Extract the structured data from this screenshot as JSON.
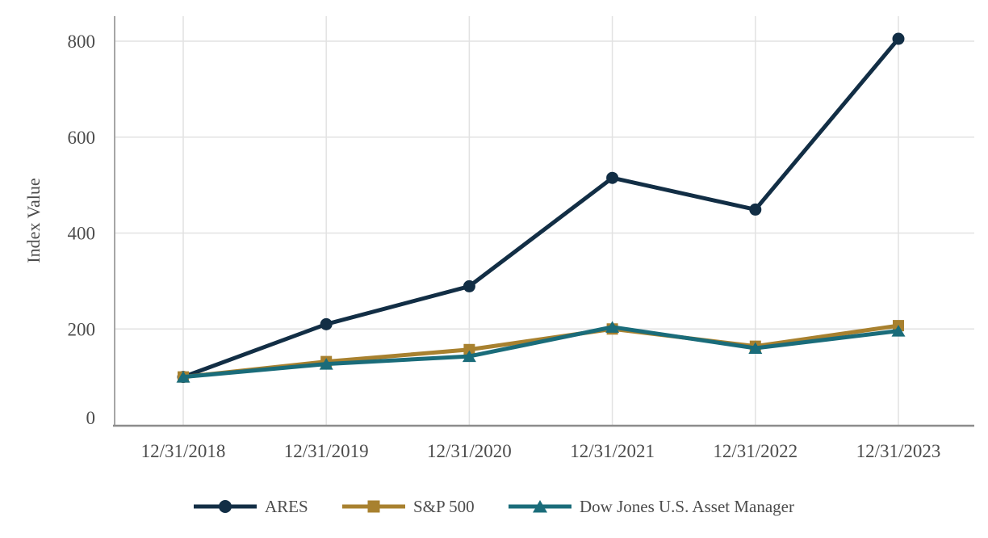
{
  "chart_data": {
    "type": "line",
    "title": "",
    "xlabel": "",
    "ylabel": "Index Value",
    "categories": [
      "12/31/2018",
      "12/31/2019",
      "12/31/2020",
      "12/31/2021",
      "12/31/2022",
      "12/31/2023"
    ],
    "series": [
      {
        "id": "ares",
        "name": "ARES",
        "color": "#122e45",
        "marker": "circle",
        "values": [
          100,
          210,
          289,
          515,
          449,
          805
        ]
      },
      {
        "id": "sp500",
        "name": "S&P 500",
        "color": "#a8812f",
        "marker": "square",
        "values": [
          100,
          132,
          157,
          200,
          164,
          207
        ]
      },
      {
        "id": "dowjones",
        "name": "Dow Jones U.S. Asset Manager",
        "color": "#1a6c7a",
        "marker": "triangle",
        "values": [
          100,
          127,
          143,
          204,
          160,
          196
        ]
      }
    ],
    "y_axis": {
      "min": 0,
      "max": 800,
      "tick_interval": 200,
      "ticks": [
        0,
        200,
        400,
        600,
        800
      ]
    },
    "grid": true,
    "legend_position": "bottom",
    "colors": {
      "gridline": "#e2e2e2",
      "y_axis_line": "#a6a6a6",
      "x_axis_line": "#8c8c8c",
      "text": "#4c4c4c",
      "background": "#ffffff"
    }
  }
}
